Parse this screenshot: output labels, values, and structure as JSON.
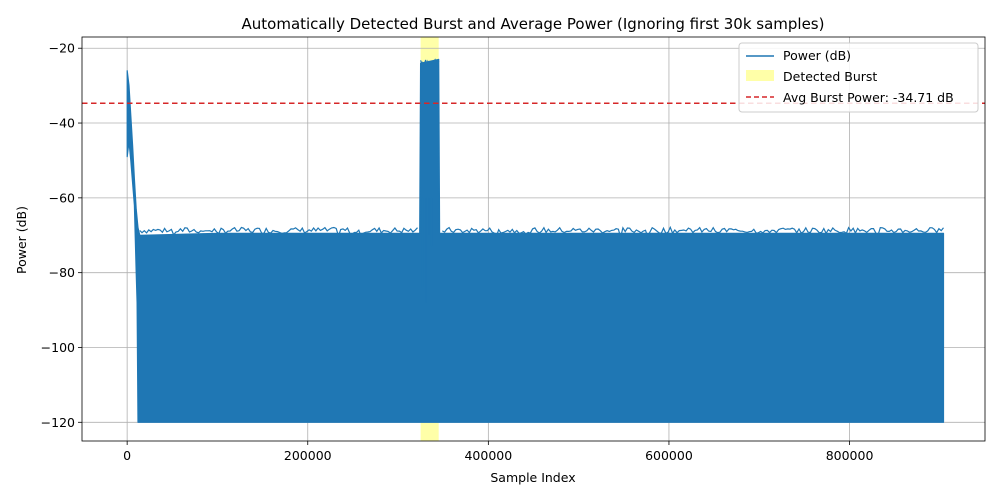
{
  "chart_data": {
    "type": "line",
    "title": "Automatically Detected Burst and Average Power (Ignoring first 30k samples)",
    "xlabel": "Sample Index",
    "ylabel": "Power (dB)",
    "xlim": [
      -50000,
      950000
    ],
    "ylim": [
      -125,
      -17
    ],
    "x_ticks": [
      0,
      200000,
      400000,
      600000,
      800000
    ],
    "x_tick_labels": [
      "0",
      "200000",
      "400000",
      "600000",
      "800000"
    ],
    "y_ticks": [
      -120,
      -100,
      -80,
      -60,
      -40,
      -20
    ],
    "y_tick_labels": [
      "−120",
      "−100",
      "−80",
      "−60",
      "−40",
      "−20"
    ],
    "grid": true,
    "legend_position": "top-right",
    "colors": {
      "power": "#1f77b4",
      "burst": "#ffff99",
      "avg": "#d62728"
    },
    "series": [
      {
        "name": "Power (dB)",
        "envelope_top": [
          [
            0,
            -26
          ],
          [
            2000,
            -30
          ],
          [
            4000,
            -38
          ],
          [
            6000,
            -46
          ],
          [
            8000,
            -55
          ],
          [
            10000,
            -63
          ],
          [
            12000,
            -68
          ],
          [
            14000,
            -70
          ],
          [
            100000,
            -69.5
          ],
          [
            200000,
            -69.5
          ],
          [
            324000,
            -69.5
          ],
          [
            325000,
            -24
          ],
          [
            345000,
            -23
          ],
          [
            346000,
            -69.5
          ],
          [
            500000,
            -69.5
          ],
          [
            700000,
            -69.5
          ],
          [
            904000,
            -69.5
          ]
        ],
        "envelope_bottom": [
          [
            0,
            -49
          ],
          [
            2000,
            -45
          ],
          [
            4000,
            -50
          ],
          [
            6000,
            -56
          ],
          [
            8000,
            -62
          ],
          [
            10000,
            -80
          ],
          [
            11000,
            -88
          ],
          [
            12000,
            -120
          ],
          [
            904000,
            -120
          ]
        ]
      }
    ],
    "burst_region": {
      "name": "Detected Burst",
      "x_start": 325000,
      "x_end": 345000
    },
    "avg_line": {
      "name": "Avg Burst Power: -34.71 dB",
      "value": -34.71
    }
  }
}
